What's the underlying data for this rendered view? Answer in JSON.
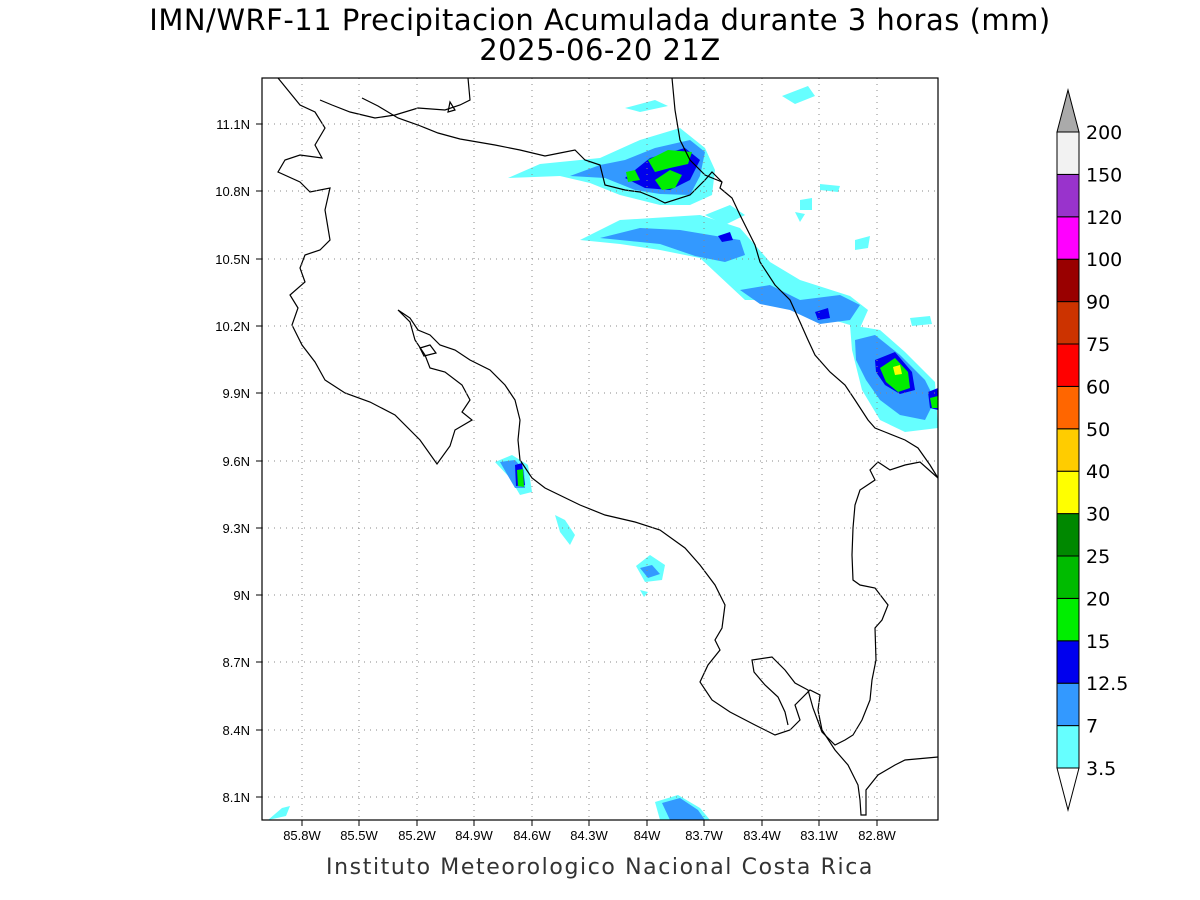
{
  "title": "IMN/WRF-11 Precipitacion Acumulada durante 3 horas (mm)",
  "subtitle": "2025-06-20 21Z",
  "footer": "Instituto Meteorologico Nacional Costa Rica",
  "lon_ticks": [
    "85.8W",
    "85.5W",
    "85.2W",
    "84.9W",
    "84.6W",
    "84.3W",
    "84W",
    "83.7W",
    "83.4W",
    "83.1W",
    "82.8W"
  ],
  "lat_ticks": [
    "11.1N",
    "10.8N",
    "10.5N",
    "10.2N",
    "9.9N",
    "9.6N",
    "9.3N",
    "9N",
    "8.7N",
    "8.4N",
    "8.1N"
  ],
  "colorbar": {
    "labels": [
      "3.5",
      "7",
      "12.5",
      "15",
      "20",
      "25",
      "30",
      "40",
      "50",
      "60",
      "75",
      "90",
      "100",
      "120",
      "150",
      "200"
    ],
    "colors": [
      "#66ffff",
      "#3399ff",
      "#0000ee",
      "#00ee00",
      "#00bb00",
      "#008800",
      "#ffff00",
      "#ffcc00",
      "#ff6600",
      "#ff0000",
      "#cc3300",
      "#990000",
      "#ff00ff",
      "#9933cc",
      "#f2f2f2"
    ]
  },
  "map": {
    "extent": {
      "lon": [
        -85.95,
        -82.95
      ],
      "lat": [
        8.0,
        11.3
      ]
    }
  }
}
